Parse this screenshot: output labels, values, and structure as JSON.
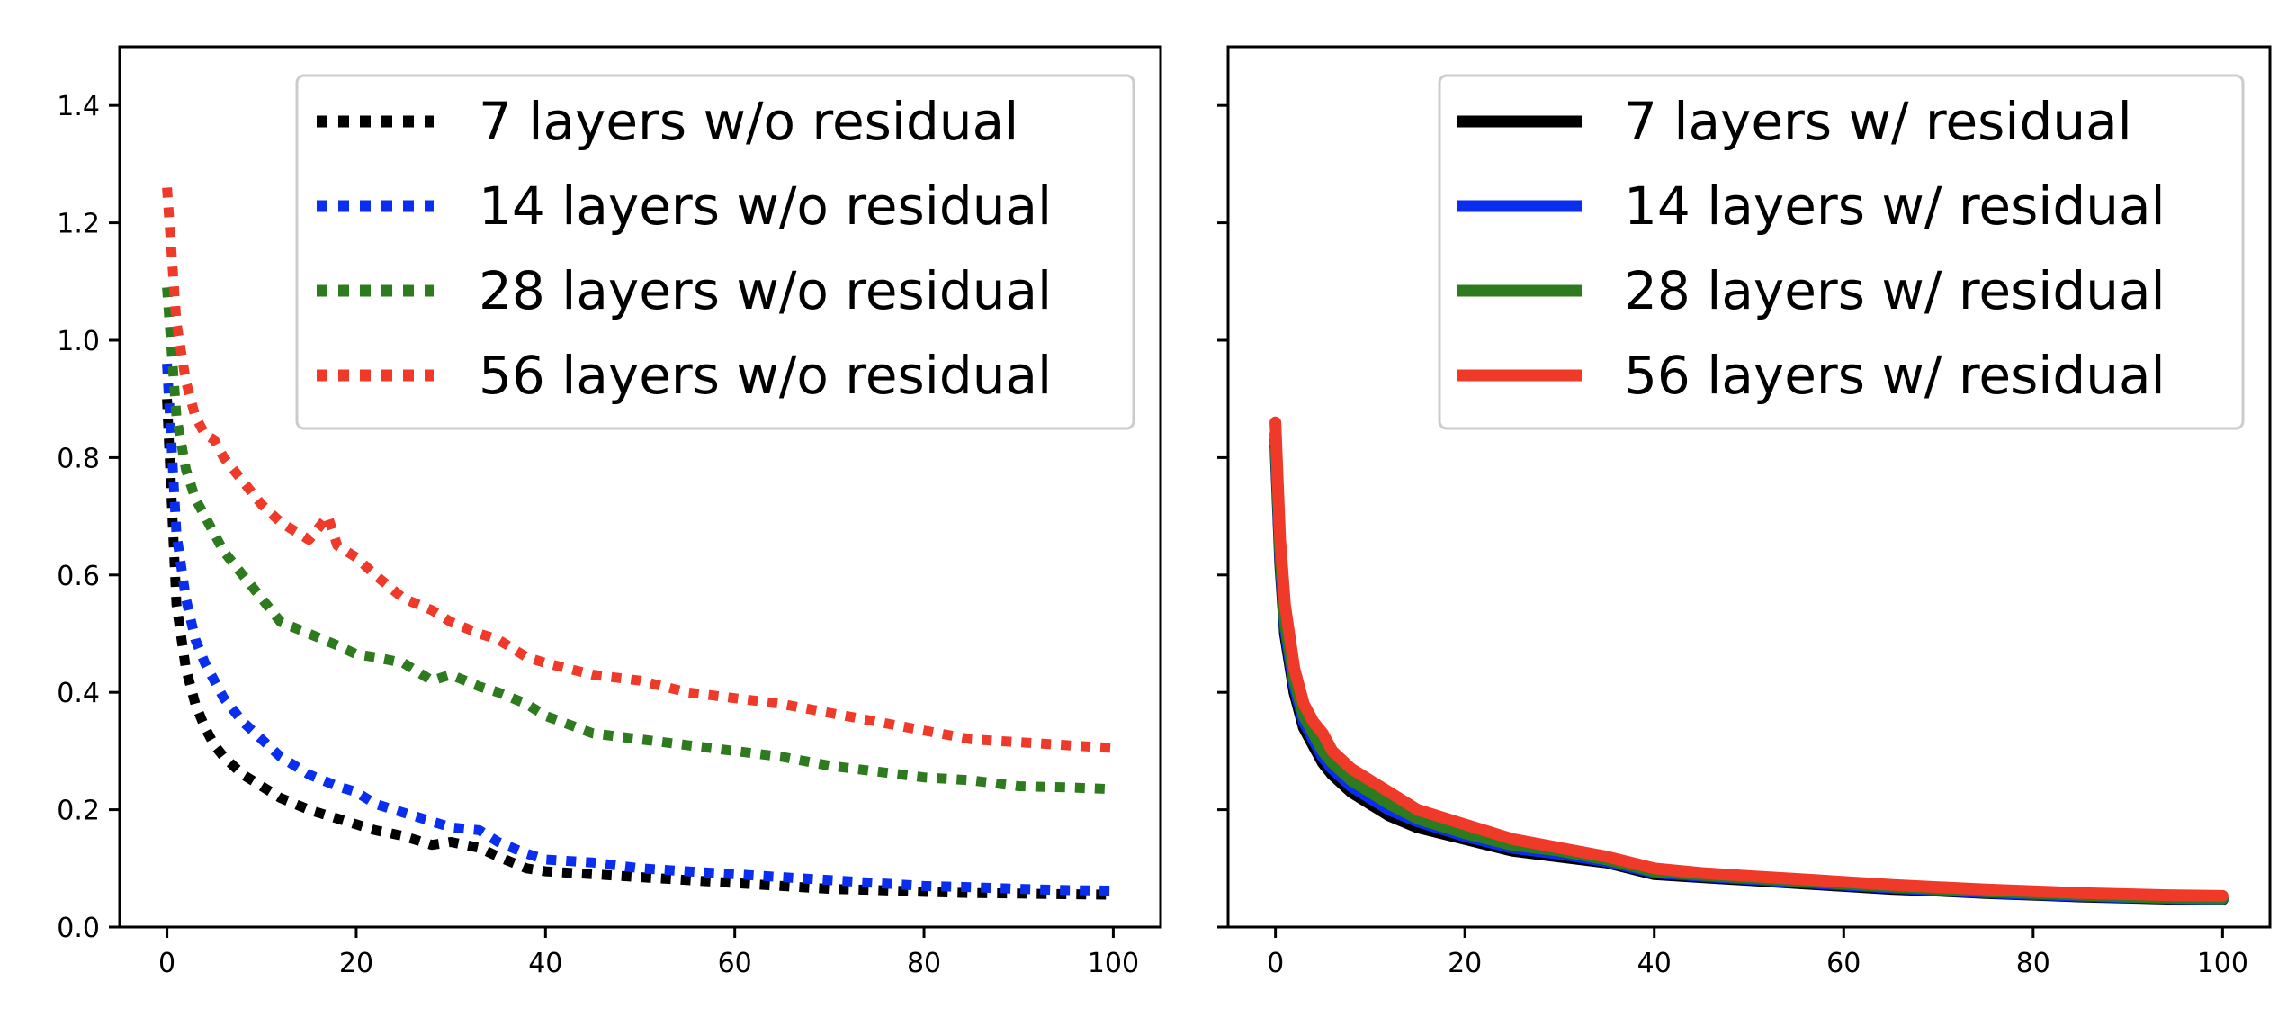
{
  "colors": {
    "black": "#000000",
    "blue": "#0a2ef0",
    "green": "#2e7a1e",
    "red": "#ef3a2a"
  },
  "chart_data": [
    {
      "type": "line",
      "title": "",
      "xlabel": "",
      "ylabel": "",
      "xlim": [
        -5,
        105
      ],
      "ylim": [
        0,
        1.5
      ],
      "xticks": [
        0,
        20,
        40,
        60,
        80,
        100
      ],
      "yticks": [
        0.0,
        0.2,
        0.4,
        0.6,
        0.8,
        1.0,
        1.2,
        1.4
      ],
      "ytick_labels": [
        "0.0",
        "0.2",
        "0.4",
        "0.6",
        "0.8",
        "1.0",
        "1.2",
        "1.4"
      ],
      "legend_position": "top-right",
      "line_style": "dotted",
      "series": [
        {
          "name": "7 layers w/o residual",
          "color": "black",
          "x": [
            0,
            1,
            2,
            3,
            4,
            5,
            6,
            8,
            10,
            12,
            15,
            18,
            20,
            22,
            25,
            28,
            30,
            33,
            35,
            38,
            40,
            45,
            50,
            55,
            60,
            65,
            70,
            75,
            80,
            85,
            90,
            95,
            100
          ],
          "y": [
            0.9,
            0.55,
            0.44,
            0.38,
            0.34,
            0.31,
            0.29,
            0.26,
            0.24,
            0.22,
            0.2,
            0.185,
            0.175,
            0.165,
            0.155,
            0.14,
            0.145,
            0.135,
            0.12,
            0.1,
            0.095,
            0.09,
            0.085,
            0.08,
            0.075,
            0.07,
            0.065,
            0.063,
            0.06,
            0.058,
            0.057,
            0.056,
            0.055
          ]
        },
        {
          "name": "14 layers w/o residual",
          "color": "blue",
          "x": [
            0,
            1,
            2,
            3,
            4,
            5,
            6,
            8,
            10,
            12,
            15,
            18,
            20,
            22,
            25,
            28,
            30,
            33,
            35,
            38,
            40,
            45,
            50,
            55,
            60,
            65,
            70,
            75,
            80,
            85,
            90,
            95,
            100
          ],
          "y": [
            0.96,
            0.67,
            0.56,
            0.49,
            0.45,
            0.42,
            0.39,
            0.35,
            0.32,
            0.29,
            0.26,
            0.24,
            0.23,
            0.21,
            0.195,
            0.18,
            0.17,
            0.165,
            0.145,
            0.125,
            0.115,
            0.11,
            0.1,
            0.095,
            0.09,
            0.085,
            0.08,
            0.075,
            0.07,
            0.068,
            0.065,
            0.063,
            0.062
          ]
        },
        {
          "name": "28 layers w/o residual",
          "color": "green",
          "x": [
            0,
            1,
            2,
            3,
            4,
            5,
            6,
            8,
            10,
            12,
            15,
            18,
            20,
            22,
            25,
            28,
            30,
            33,
            35,
            38,
            40,
            45,
            50,
            55,
            60,
            65,
            70,
            75,
            80,
            85,
            90,
            95,
            100
          ],
          "y": [
            1.09,
            0.87,
            0.78,
            0.73,
            0.7,
            0.67,
            0.64,
            0.6,
            0.56,
            0.52,
            0.5,
            0.48,
            0.465,
            0.46,
            0.45,
            0.42,
            0.43,
            0.41,
            0.4,
            0.38,
            0.36,
            0.33,
            0.32,
            0.31,
            0.3,
            0.29,
            0.275,
            0.265,
            0.255,
            0.25,
            0.24,
            0.238,
            0.235
          ]
        },
        {
          "name": "56 layers w/o residual",
          "color": "red",
          "x": [
            0,
            1,
            2,
            3,
            4,
            5,
            6,
            8,
            10,
            12,
            15,
            17,
            18,
            20,
            22,
            25,
            28,
            30,
            33,
            35,
            38,
            40,
            45,
            50,
            55,
            60,
            65,
            70,
            75,
            80,
            85,
            90,
            95,
            100
          ],
          "y": [
            1.26,
            1.03,
            0.93,
            0.87,
            0.84,
            0.83,
            0.8,
            0.76,
            0.72,
            0.69,
            0.66,
            0.7,
            0.65,
            0.63,
            0.6,
            0.56,
            0.54,
            0.52,
            0.5,
            0.49,
            0.46,
            0.45,
            0.43,
            0.42,
            0.4,
            0.39,
            0.38,
            0.365,
            0.35,
            0.335,
            0.32,
            0.315,
            0.31,
            0.305
          ]
        }
      ]
    },
    {
      "type": "line",
      "title": "",
      "xlabel": "",
      "ylabel": "",
      "xlim": [
        -5,
        105
      ],
      "ylim": [
        0,
        1.5
      ],
      "xticks": [
        0,
        20,
        40,
        60,
        80,
        100
      ],
      "yticks": [
        0.0,
        0.2,
        0.4,
        0.6,
        0.8,
        1.0,
        1.2,
        1.4
      ],
      "ytick_labels": [],
      "legend_position": "top-right",
      "line_style": "solid",
      "series": [
        {
          "name": "7 layers w/ residual",
          "color": "black",
          "x": [
            0,
            0.5,
            1,
            2,
            3,
            4,
            5,
            6,
            8,
            10,
            12,
            15,
            20,
            25,
            30,
            35,
            40,
            45,
            50,
            55,
            60,
            65,
            70,
            75,
            80,
            85,
            90,
            95,
            100
          ],
          "y": [
            0.82,
            0.62,
            0.5,
            0.4,
            0.34,
            0.31,
            0.28,
            0.26,
            0.23,
            0.21,
            0.19,
            0.17,
            0.15,
            0.13,
            0.12,
            0.11,
            0.09,
            0.085,
            0.08,
            0.075,
            0.07,
            0.065,
            0.062,
            0.058,
            0.055,
            0.052,
            0.05,
            0.048,
            0.047
          ]
        },
        {
          "name": "14 layers w/ residual",
          "color": "blue",
          "x": [
            0,
            0.5,
            1,
            2,
            3,
            4,
            5,
            6,
            8,
            10,
            12,
            15,
            20,
            25,
            30,
            35,
            40,
            45,
            50,
            55,
            60,
            65,
            70,
            75,
            80,
            85,
            90,
            95,
            100
          ],
          "y": [
            0.83,
            0.63,
            0.51,
            0.41,
            0.35,
            0.32,
            0.29,
            0.27,
            0.24,
            0.22,
            0.2,
            0.18,
            0.155,
            0.135,
            0.125,
            0.112,
            0.093,
            0.087,
            0.082,
            0.077,
            0.072,
            0.067,
            0.063,
            0.059,
            0.056,
            0.053,
            0.051,
            0.049,
            0.048
          ]
        },
        {
          "name": "28 layers w/ residual",
          "color": "green",
          "x": [
            0,
            0.5,
            1,
            2,
            3,
            4,
            5,
            6,
            8,
            10,
            12,
            15,
            20,
            25,
            30,
            35,
            40,
            45,
            50,
            55,
            60,
            65,
            70,
            75,
            80,
            85,
            90,
            95,
            100
          ],
          "y": [
            0.84,
            0.64,
            0.52,
            0.42,
            0.36,
            0.33,
            0.3,
            0.28,
            0.25,
            0.23,
            0.21,
            0.185,
            0.16,
            0.14,
            0.13,
            0.115,
            0.095,
            0.089,
            0.084,
            0.079,
            0.074,
            0.069,
            0.065,
            0.061,
            0.058,
            0.055,
            0.052,
            0.05,
            0.049
          ]
        },
        {
          "name": "56 layers w/ residual",
          "color": "red",
          "x": [
            0,
            0.5,
            1,
            2,
            3,
            4,
            5,
            6,
            8,
            10,
            12,
            15,
            20,
            25,
            30,
            35,
            40,
            45,
            50,
            55,
            60,
            65,
            70,
            75,
            80,
            85,
            90,
            95,
            100
          ],
          "y": [
            0.86,
            0.66,
            0.55,
            0.44,
            0.38,
            0.35,
            0.33,
            0.3,
            0.27,
            0.25,
            0.23,
            0.2,
            0.175,
            0.15,
            0.135,
            0.12,
            0.1,
            0.092,
            0.087,
            0.082,
            0.077,
            0.072,
            0.068,
            0.064,
            0.061,
            0.058,
            0.056,
            0.054,
            0.053
          ]
        }
      ]
    }
  ]
}
